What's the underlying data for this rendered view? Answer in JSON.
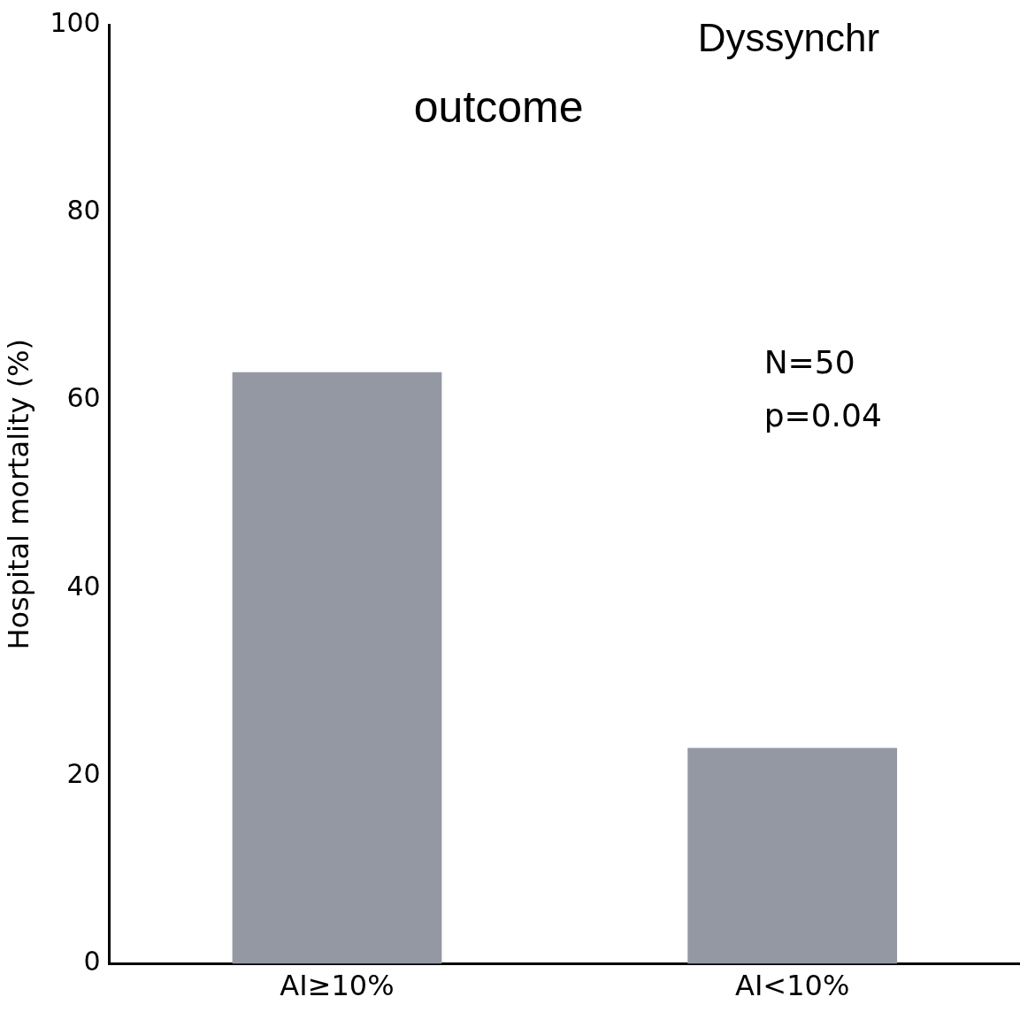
{
  "chart_data": {
    "type": "bar",
    "title": "Dyssynchr",
    "subtitle": "outcome",
    "ylabel": "Hospital mortality (%)",
    "categories": [
      "AI≥10%",
      "AI<10%"
    ],
    "values": [
      63,
      23
    ],
    "color": "#9498a2",
    "ylim": [
      0,
      100
    ],
    "yticks": [
      0,
      20,
      40,
      60,
      80,
      100
    ],
    "grid": false,
    "legend": false,
    "annotations": [
      "N=50",
      "p=0.04"
    ]
  }
}
